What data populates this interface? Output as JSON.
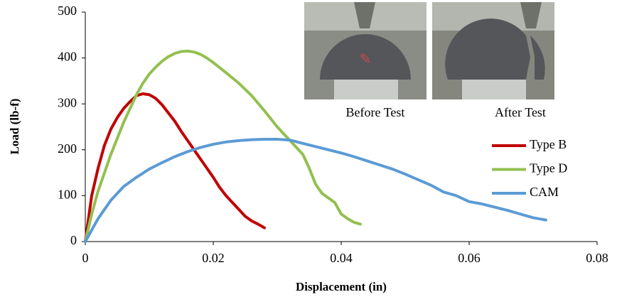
{
  "chart_data": {
    "type": "line",
    "x_label": "Displacement (in)",
    "y_label": "Load (lb-f)",
    "xlim": [
      0,
      0.08
    ],
    "xticks": [
      0,
      0.02,
      0.04,
      0.06,
      0.08
    ],
    "ylim": [
      0,
      500
    ],
    "yticks": [
      0,
      100,
      200,
      300,
      400,
      500
    ],
    "grid": false,
    "legend": "right",
    "annotations": [
      "Before Test",
      "After Test"
    ],
    "series": [
      {
        "name": "Type B",
        "color": "#c00000",
        "x": [
          0,
          0.001,
          0.002,
          0.003,
          0.004,
          0.005,
          0.006,
          0.007,
          0.008,
          0.009,
          0.01,
          0.011,
          0.012,
          0.013,
          0.014,
          0.015,
          0.016,
          0.017,
          0.018,
          0.019,
          0.02,
          0.021,
          0.022,
          0.023,
          0.024,
          0.025,
          0.026,
          0.027,
          0.028
        ],
        "values": [
          0,
          100,
          160,
          210,
          245,
          270,
          290,
          305,
          318,
          322,
          320,
          312,
          298,
          280,
          262,
          240,
          220,
          200,
          180,
          160,
          140,
          118,
          100,
          85,
          70,
          55,
          45,
          38,
          30
        ]
      },
      {
        "name": "Type D",
        "color": "#92c050",
        "x": [
          0,
          0.001,
          0.002,
          0.003,
          0.004,
          0.005,
          0.006,
          0.007,
          0.008,
          0.009,
          0.01,
          0.011,
          0.012,
          0.013,
          0.014,
          0.015,
          0.016,
          0.017,
          0.018,
          0.019,
          0.02,
          0.022,
          0.024,
          0.026,
          0.028,
          0.03,
          0.032,
          0.034,
          0.035,
          0.036,
          0.037,
          0.038,
          0.039,
          0.04,
          0.041,
          0.042,
          0.043
        ],
        "values": [
          0,
          60,
          110,
          150,
          190,
          225,
          260,
          290,
          320,
          345,
          365,
          380,
          393,
          403,
          410,
          414,
          415,
          413,
          408,
          400,
          390,
          368,
          345,
          318,
          285,
          250,
          220,
          190,
          160,
          125,
          105,
          95,
          85,
          60,
          50,
          42,
          38
        ]
      },
      {
        "name": "CAM",
        "color": "#5b9bd5",
        "x": [
          0,
          0.002,
          0.004,
          0.006,
          0.008,
          0.01,
          0.012,
          0.014,
          0.016,
          0.018,
          0.02,
          0.022,
          0.024,
          0.026,
          0.028,
          0.03,
          0.032,
          0.034,
          0.036,
          0.038,
          0.04,
          0.042,
          0.044,
          0.046,
          0.048,
          0.05,
          0.052,
          0.054,
          0.056,
          0.058,
          0.06,
          0.062,
          0.064,
          0.066,
          0.068,
          0.07,
          0.072
        ],
        "values": [
          0,
          50,
          90,
          120,
          140,
          158,
          172,
          185,
          196,
          205,
          212,
          217,
          220,
          222,
          223,
          223,
          221,
          214,
          207,
          200,
          193,
          185,
          176,
          167,
          158,
          147,
          135,
          123,
          108,
          100,
          87,
          82,
          75,
          68,
          60,
          52,
          47
        ]
      }
    ]
  }
}
